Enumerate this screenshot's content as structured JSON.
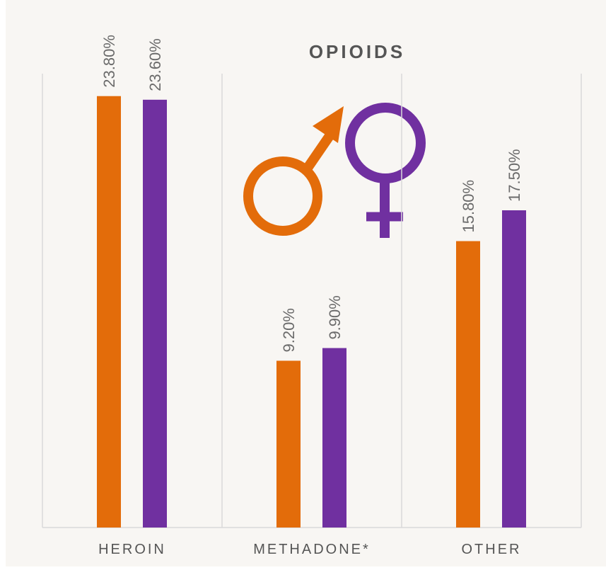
{
  "chart_data": {
    "type": "bar",
    "title": "OPIOIDS",
    "categories": [
      "HEROIN",
      "METHADONE*",
      "OTHER"
    ],
    "series": [
      {
        "color": "#e36c0a",
        "values": [
          23.8,
          9.2,
          15.8
        ],
        "value_labels": [
          "23.80%",
          "9.20%",
          "15.80%"
        ]
      },
      {
        "color": "#7030a0",
        "values": [
          23.6,
          9.9,
          17.5
        ],
        "value_labels": [
          "23.60%",
          "9.90%",
          "17.50%"
        ]
      }
    ]
  }
}
